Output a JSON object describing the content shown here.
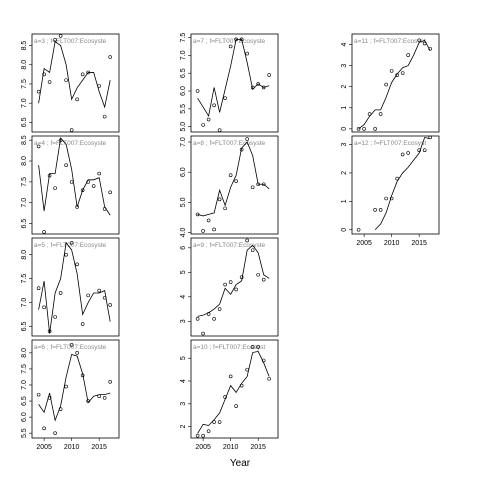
{
  "x_label": "Year",
  "chart_data": [
    {
      "type": "scatter-line",
      "title": "a=3 ; f=FLT007:Ecosyste",
      "color": "#000000",
      "x": [
        2004,
        2005,
        2006,
        2007,
        2008,
        2009,
        2010,
        2011,
        2012,
        2013,
        2014,
        2015,
        2016,
        2017
      ],
      "xlim": [
        2002.8,
        2018.6
      ],
      "ylim": [
        6.25,
        8.8
      ],
      "yticks": [
        6.5,
        {
          "value": 7,
          "label": "7.0"
        },
        7.5,
        {
          "value": 8,
          "label": "8.0"
        },
        8.5
      ],
      "series": [
        {
          "marker": "circle",
          "values": [
            7.3,
            7.75,
            7.55,
            8.65,
            8.75,
            7.6,
            6.3,
            7.1,
            7.75,
            7.8,
            null,
            7.45,
            6.65,
            8.2
          ]
        },
        {
          "marker": "line",
          "values": [
            7.0,
            7.9,
            7.8,
            8.6,
            8.5,
            8.0,
            7.1,
            7.4,
            7.6,
            7.8,
            7.8,
            7.3,
            6.9,
            7.6
          ]
        }
      ]
    },
    {
      "type": "scatter-line",
      "title": "a=4 ; f=FLT007:Ecosyste",
      "color": "#000000",
      "x": [
        2004,
        2005,
        2006,
        2007,
        2008,
        2009,
        2010,
        2011,
        2012,
        2013,
        2014,
        2015,
        2016,
        2017
      ],
      "xlim": [
        2002.8,
        2018.6
      ],
      "ylim": [
        6.25,
        8.6
      ],
      "yticks": [
        6.5,
        {
          "value": 7,
          "label": "7.0"
        },
        7.5,
        {
          "value": 8,
          "label": "8.0"
        },
        8.5
      ],
      "series": [
        {
          "marker": "circle",
          "values": [
            8.35,
            6.3,
            7.65,
            7.35,
            8.5,
            7.9,
            7.5,
            6.9,
            7.3,
            7.5,
            7.4,
            7.7,
            6.85,
            7.25
          ]
        },
        {
          "marker": "line",
          "values": [
            7.9,
            6.8,
            7.7,
            7.7,
            8.55,
            8.4,
            7.8,
            6.9,
            7.3,
            7.55,
            7.55,
            7.6,
            6.9,
            6.7
          ]
        }
      ]
    },
    {
      "type": "scatter-line",
      "title": "a=5 ; f=FLT007:Ecosyste",
      "color": "#000000",
      "x": [
        2004,
        2005,
        2006,
        2007,
        2008,
        2009,
        2010,
        2011,
        2012,
        2013,
        2014,
        2015,
        2016,
        2017
      ],
      "xlim": [
        2002.8,
        2018.6
      ],
      "ylim": [
        6.3,
        8.35
      ],
      "yticks": [
        6.5,
        {
          "value": 7,
          "label": "7.0"
        },
        7.5,
        {
          "value": 8,
          "label": "8.0"
        }
      ],
      "series": [
        {
          "marker": "circle",
          "values": [
            7.3,
            6.9,
            6.4,
            6.7,
            7.2,
            8.0,
            8.25,
            7.8,
            6.55,
            7.15,
            null,
            7.25,
            7.1,
            6.95
          ]
        },
        {
          "marker": "line",
          "values": [
            6.85,
            7.45,
            6.35,
            7.2,
            7.5,
            8.25,
            8.1,
            7.6,
            6.75,
            7.0,
            7.2,
            7.2,
            7.25,
            6.6
          ]
        }
      ]
    },
    {
      "type": "scatter-line",
      "title": "a=6 ; f=FLT007:Ecosyste",
      "color": "#000000",
      "x": [
        2004,
        2005,
        2006,
        2007,
        2008,
        2009,
        2010,
        2011,
        2012,
        2013,
        2014,
        2015,
        2016,
        2017
      ],
      "xlim": [
        2002.8,
        2018.6
      ],
      "xticks": [
        2005,
        2010,
        2015
      ],
      "ylim": [
        5.35,
        8.4
      ],
      "yticks": [
        5.5,
        {
          "value": 6,
          "label": "6.0"
        },
        6.5,
        {
          "value": 7,
          "label": "7.0"
        },
        7.5,
        {
          "value": 8,
          "label": "8.0"
        }
      ],
      "series": [
        {
          "marker": "circle",
          "values": [
            6.7,
            5.65,
            6.6,
            5.5,
            6.25,
            6.95,
            8.25,
            8.0,
            7.3,
            6.5,
            null,
            6.65,
            6.6,
            7.1
          ]
        },
        {
          "marker": "line",
          "values": [
            6.4,
            6.15,
            6.75,
            5.9,
            6.35,
            7.25,
            7.95,
            7.9,
            7.35,
            6.45,
            6.65,
            6.7,
            6.7,
            6.75
          ]
        }
      ]
    },
    {
      "type": "scatter-line",
      "title": "a=7 ; f=FLT007:Ecosyste",
      "color": "#000000",
      "x": [
        2004,
        2005,
        2006,
        2007,
        2008,
        2009,
        2010,
        2011,
        2012,
        2013,
        2014,
        2015,
        2016,
        2017
      ],
      "xlim": [
        2002.8,
        2018.6
      ],
      "ylim": [
        4.85,
        7.6
      ],
      "yticks": [
        {
          "value": 5,
          "label": "5.0"
        },
        5.5,
        {
          "value": 6,
          "label": "6.0"
        },
        6.5,
        {
          "value": 7,
          "label": "7.0"
        },
        7.5
      ],
      "series": [
        {
          "marker": "circle",
          "values": [
            6.0,
            5.05,
            5.2,
            5.6,
            4.9,
            5.8,
            7.25,
            7.45,
            7.45,
            7.05,
            6.1,
            6.2,
            6.1,
            6.45
          ]
        },
        {
          "marker": "line",
          "values": [
            5.8,
            5.55,
            5.3,
            6.1,
            5.4,
            6.05,
            6.7,
            7.45,
            7.45,
            6.8,
            6.05,
            6.2,
            6.1,
            6.15
          ]
        }
      ]
    },
    {
      "type": "scatter-line",
      "title": "a=8 ; f=FLT007:Ecosyste",
      "color": "#000000",
      "x": [
        2004,
        2005,
        2006,
        2007,
        2008,
        2009,
        2010,
        2011,
        2012,
        2013,
        2014,
        2015,
        2016,
        2017
      ],
      "xlim": [
        2002.8,
        2018.6
      ],
      "ylim": [
        3.95,
        7.2
      ],
      "yticks": [
        {
          "value": 4,
          "label": "4.0"
        },
        {
          "value": 5,
          "label": "5.0"
        },
        {
          "value": 6,
          "label": "6.0"
        },
        {
          "value": 7,
          "label": "7.0"
        }
      ],
      "series": [
        {
          "marker": "circle",
          "values": [
            4.6,
            4.05,
            4.4,
            4.1,
            5.1,
            4.8,
            5.9,
            5.7,
            6.75,
            7.1,
            5.5,
            5.6,
            5.6,
            null
          ]
        },
        {
          "marker": "line",
          "values": [
            4.6,
            4.55,
            4.6,
            4.65,
            5.4,
            4.9,
            5.5,
            5.9,
            6.8,
            7.0,
            6.55,
            5.6,
            5.6,
            5.45
          ]
        }
      ]
    },
    {
      "type": "scatter-line",
      "title": "a=9 ; f=FLT007:Ecosyste",
      "color": "#000000",
      "x": [
        2004,
        2005,
        2006,
        2007,
        2008,
        2009,
        2010,
        2011,
        2012,
        2013,
        2014,
        2015,
        2016,
        2017
      ],
      "xlim": [
        2002.8,
        2018.6
      ],
      "ylim": [
        2.4,
        6.4
      ],
      "yticks": [
        3,
        4,
        5,
        6
      ],
      "series": [
        {
          "marker": "circle",
          "values": [
            3.1,
            2.5,
            3.3,
            3.1,
            3.5,
            4.5,
            4.6,
            4.3,
            4.8,
            6.3,
            5.9,
            4.9,
            4.7,
            null
          ]
        },
        {
          "marker": "line",
          "values": [
            3.2,
            3.25,
            3.35,
            3.5,
            3.7,
            4.35,
            4.1,
            4.5,
            4.65,
            5.9,
            6.1,
            5.8,
            4.9,
            4.75
          ]
        }
      ]
    },
    {
      "type": "scatter-line",
      "title": "a=10 ; f=FLT007:Ecosyst",
      "color": "#000000",
      "x": [
        2004,
        2005,
        2006,
        2007,
        2008,
        2009,
        2010,
        2011,
        2012,
        2013,
        2014,
        2015,
        2016,
        2017
      ],
      "xlim": [
        2002.8,
        2018.6
      ],
      "xticks": [
        2005,
        2010,
        2015
      ],
      "ylim": [
        1.5,
        5.8
      ],
      "yticks": [
        2,
        3,
        4,
        5
      ],
      "series": [
        {
          "marker": "circle",
          "values": [
            1.6,
            1.6,
            1.8,
            2.2,
            2.2,
            3.3,
            4.2,
            2.9,
            3.8,
            4.5,
            5.5,
            5.5,
            4.9,
            4.1
          ]
        },
        {
          "marker": "line",
          "values": [
            1.7,
            2.1,
            2.05,
            2.3,
            2.6,
            3.2,
            3.8,
            3.5,
            3.9,
            4.2,
            5.25,
            5.3,
            4.8,
            4.2
          ]
        }
      ]
    },
    {
      "type": "scatter-line",
      "title": "a=11 ; f=FLT007:Ecosyst",
      "color": "#000000",
      "x": [
        2004,
        2005,
        2006,
        2007,
        2008,
        2009,
        2010,
        2011,
        2012,
        2013,
        2014,
        2015,
        2016,
        2017
      ],
      "xlim": [
        2002.8,
        2018.6
      ],
      "ylim": [
        -0.15,
        4.5
      ],
      "yticks": [
        0,
        1,
        2,
        3,
        4
      ],
      "series": [
        {
          "marker": "circle",
          "values": [
            0,
            0,
            0.7,
            0,
            0.7,
            2.1,
            2.75,
            2.55,
            2.65,
            3.5,
            null,
            4.2,
            4.05,
            3.8
          ]
        },
        {
          "marker": "line",
          "values": [
            0,
            0.2,
            0.6,
            0.9,
            0.9,
            1.5,
            2.2,
            2.6,
            2.9,
            3.0,
            3.5,
            4.1,
            4.2,
            3.7
          ]
        }
      ]
    },
    {
      "type": "scatter-line",
      "title": "a=12 ; f=FLT007:Ecosyst",
      "color": "#000000",
      "x": [
        2004,
        2005,
        2006,
        2007,
        2008,
        2009,
        2010,
        2011,
        2012,
        2013,
        2014,
        2015,
        2016,
        2017
      ],
      "xlim": [
        2002.8,
        2018.6
      ],
      "xticks": [
        2005,
        2010,
        2015
      ],
      "ylim": [
        -0.15,
        3.3
      ],
      "yticks": [
        0,
        1,
        2,
        3
      ],
      "series": [
        {
          "marker": "circle",
          "values": [
            0,
            null,
            null,
            0.7,
            0.7,
            1.1,
            1.1,
            1.8,
            2.65,
            2.7,
            null,
            2.8,
            2.8,
            3.25
          ]
        },
        {
          "marker": "line",
          "values": [
            null,
            null,
            null,
            0,
            0.2,
            0.6,
            1.2,
            1.7,
            2.0,
            2.2,
            2.45,
            2.7,
            3.25,
            3.2
          ]
        }
      ]
    }
  ]
}
